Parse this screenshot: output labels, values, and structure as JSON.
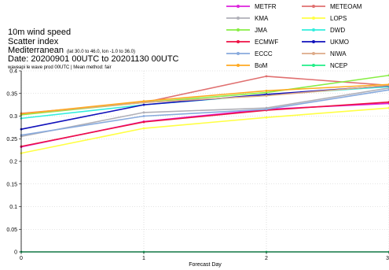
{
  "header": {
    "line1": "10m wind speed",
    "line2": "Scatter index",
    "line3_main": "Mediterranean",
    "line3_sub": "(lat  30.0 to 46.0, lon   -1.0 to 36.0)",
    "line4": "Date: 20200901 00UTC to 20201130 00UTC",
    "line5": "waveapi le wave prod 00UTC | Mean method: fair"
  },
  "chart_data": {
    "type": "line",
    "xlabel": "Forecast Day",
    "ylabel": "",
    "x": [
      0,
      1,
      2,
      3
    ],
    "xlim": [
      0,
      3
    ],
    "ylim": [
      0,
      0.4
    ],
    "xticks": [
      "0",
      "1",
      "2",
      "3"
    ],
    "yticks": [
      "0",
      "0.05",
      "0.1",
      "0.15",
      "0.2",
      "0.25",
      "0.3",
      "0.35",
      "0.4"
    ],
    "grid": true,
    "legend_position": "top-right",
    "series": [
      {
        "name": "METFR",
        "color": "#dd22dd",
        "values": [
          0.232,
          0.288,
          0.315,
          0.328
        ]
      },
      {
        "name": "METEOAM",
        "color": "#e07070",
        "values": [
          0.306,
          0.33,
          0.388,
          0.368
        ]
      },
      {
        "name": "KMA",
        "color": "#b0b0b8",
        "values": [
          0.255,
          0.308,
          0.318,
          0.362
        ]
      },
      {
        "name": "LOPS",
        "color": "#ffff44",
        "values": [
          0.218,
          0.273,
          0.297,
          0.318
        ]
      },
      {
        "name": "JMA",
        "color": "#88ee44",
        "values": [
          0.303,
          0.33,
          0.352,
          0.39
        ]
      },
      {
        "name": "DWD",
        "color": "#33eedd",
        "values": [
          0.295,
          0.325,
          0.347,
          0.365
        ]
      },
      {
        "name": "ECMWF",
        "color": "#ee1144",
        "values": [
          0.233,
          0.287,
          0.313,
          0.331
        ]
      },
      {
        "name": "UKMO",
        "color": "#1111bb",
        "values": [
          0.271,
          0.325,
          0.348,
          0.367
        ]
      },
      {
        "name": "ECCC",
        "color": "#88aadd",
        "values": [
          0.258,
          0.3,
          0.315,
          0.358
        ]
      },
      {
        "name": "NIWA",
        "color": "#ddaa88",
        "values": [
          0.305,
          0.33,
          0.345,
          0.368
        ]
      },
      {
        "name": "BoM",
        "color": "#ffaa22",
        "values": [
          0.305,
          0.333,
          0.356,
          0.37
        ]
      },
      {
        "name": "NCEP",
        "color": "#22ee88",
        "values": [
          0,
          0,
          0,
          0
        ]
      }
    ]
  }
}
